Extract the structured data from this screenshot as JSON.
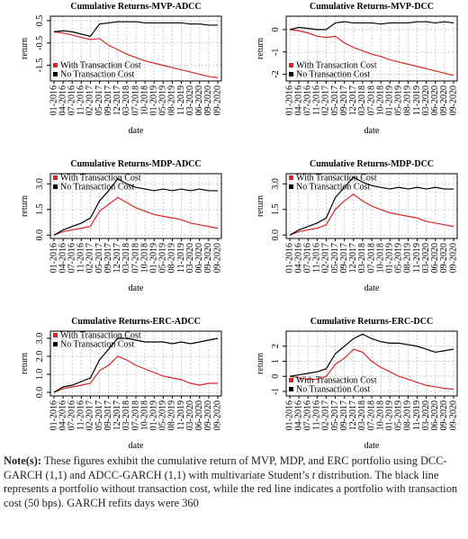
{
  "chart_data": [
    {
      "type": "line",
      "title": "Cumulative Returns-MVP-ADCC",
      "x_label": "date",
      "y_label": "return",
      "legend": "bottom-left",
      "grid": true,
      "categories": [
        "01-2016",
        "04-2016",
        "07-2016",
        "11-2016",
        "02-2017",
        "05-2017",
        "09-2017",
        "12-2017",
        "03-2018",
        "07-2018",
        "10-2018",
        "01-2019",
        "05-2019",
        "08-2019",
        "11-2019",
        "03-2020",
        "06-2020",
        "09-2020",
        "09-2020"
      ],
      "ylim": [
        -2.2,
        0.7
      ],
      "yticks": [
        -1.5,
        -0.5,
        0.5
      ],
      "series": [
        {
          "name": "With Transaction Cost",
          "color": "#d62728",
          "values": [
            0,
            -0.05,
            -0.15,
            -0.25,
            -0.35,
            -0.3,
            -0.6,
            -0.8,
            -1.0,
            -1.15,
            -1.3,
            -1.4,
            -1.5,
            -1.6,
            -1.7,
            -1.8,
            -1.9,
            -2.0,
            -2.05
          ]
        },
        {
          "name": "No Transaction Cost",
          "color": "#000000",
          "values": [
            0,
            0.05,
            0,
            -0.1,
            -0.2,
            0.35,
            0.4,
            0.45,
            0.45,
            0.45,
            0.4,
            0.4,
            0.4,
            0.4,
            0.4,
            0.35,
            0.35,
            0.3,
            0.3
          ]
        }
      ]
    },
    {
      "type": "line",
      "title": "Cumulative Returns-MVP-DCC",
      "x_label": "date",
      "y_label": "return",
      "legend": "bottom-left",
      "grid": true,
      "categories": [
        "01-2016",
        "04-2016",
        "07-2016",
        "11-2016",
        "02-2017",
        "05-2017",
        "09-2017",
        "12-2017",
        "03-2018",
        "07-2018",
        "10-2018",
        "01-2019",
        "05-2019",
        "08-2019",
        "11-2019",
        "03-2020",
        "06-2020",
        "09-2020",
        "09-2020"
      ],
      "ylim": [
        -2.3,
        0.6
      ],
      "yticks": [
        -2,
        -1,
        0
      ],
      "series": [
        {
          "name": "With Transaction Cost",
          "color": "#d62728",
          "values": [
            0,
            -0.05,
            -0.15,
            -0.3,
            -0.35,
            -0.3,
            -0.6,
            -0.8,
            -0.95,
            -1.1,
            -1.2,
            -1.35,
            -1.45,
            -1.55,
            -1.65,
            -1.75,
            -1.85,
            -1.95,
            -2.05
          ]
        },
        {
          "name": "No Transaction Cost",
          "color": "#000000",
          "values": [
            0,
            0.1,
            0.05,
            0,
            0,
            0.3,
            0.35,
            0.3,
            0.3,
            0.3,
            0.25,
            0.3,
            0.3,
            0.3,
            0.35,
            0.35,
            0.3,
            0.35,
            0.3
          ]
        }
      ]
    },
    {
      "type": "line",
      "title": "Cumulative Returns-MDP-ADCC",
      "x_label": "date",
      "y_label": "return",
      "legend": "top-left",
      "grid": true,
      "categories": [
        "01-2016",
        "04-2016",
        "07-2016",
        "11-2016",
        "02-2017",
        "05-2017",
        "09-2017",
        "12-2017",
        "03-2018",
        "07-2018",
        "10-2018",
        "01-2019",
        "05-2019",
        "08-2019",
        "11-2019",
        "03-2020",
        "06-2020",
        "09-2020",
        "09-2020"
      ],
      "ylim": [
        -0.2,
        3.6
      ],
      "yticks": [
        {
          "value": 0,
          "label": "0.0"
        },
        1.5,
        {
          "value": 3,
          "label": "3.0"
        }
      ],
      "series": [
        {
          "name": "With Transaction Cost",
          "color": "#d62728",
          "values": [
            0,
            0.2,
            0.3,
            0.4,
            0.5,
            1.4,
            1.8,
            2.2,
            1.9,
            1.6,
            1.4,
            1.2,
            1.1,
            1.0,
            0.9,
            0.7,
            0.6,
            0.5,
            0.4
          ]
        },
        {
          "name": "No Transaction Cost",
          "color": "#000000",
          "values": [
            0,
            0.3,
            0.5,
            0.7,
            1.0,
            2.0,
            2.6,
            3.3,
            3.0,
            2.8,
            2.7,
            2.6,
            2.7,
            2.6,
            2.7,
            2.6,
            2.7,
            2.6,
            2.6
          ]
        }
      ]
    },
    {
      "type": "line",
      "title": "Cumulative Returns-MDP-DCC",
      "x_label": "date",
      "y_label": "return",
      "legend": "top-left",
      "grid": true,
      "categories": [
        "01-2016",
        "04-2016",
        "07-2016",
        "11-2016",
        "02-2017",
        "05-2017",
        "09-2017",
        "12-2017",
        "03-2018",
        "07-2018",
        "10-2018",
        "01-2019",
        "05-2019",
        "08-2019",
        "11-2019",
        "03-2020",
        "06-2020",
        "09-2020",
        "09-2020"
      ],
      "ylim": [
        -0.2,
        3.6
      ],
      "yticks": [
        {
          "value": 0,
          "label": "0.0"
        },
        1.5,
        {
          "value": 3,
          "label": "3.0"
        }
      ],
      "series": [
        {
          "name": "With Transaction Cost",
          "color": "#d62728",
          "values": [
            0,
            0.2,
            0.3,
            0.4,
            0.6,
            1.5,
            2.0,
            2.4,
            2.0,
            1.7,
            1.5,
            1.3,
            1.2,
            1.1,
            1.0,
            0.8,
            0.7,
            0.6,
            0.5
          ]
        },
        {
          "name": "No Transaction Cost",
          "color": "#000000",
          "values": [
            0,
            0.3,
            0.5,
            0.7,
            1.0,
            2.2,
            2.8,
            3.4,
            3.1,
            2.9,
            2.8,
            2.7,
            2.8,
            2.7,
            2.8,
            2.7,
            2.8,
            2.7,
            2.7
          ]
        }
      ]
    },
    {
      "type": "line",
      "title": "Cumulative Returns-ERC-ADCC",
      "x_label": "date",
      "y_label": "return",
      "legend": "top-left",
      "grid": true,
      "categories": [
        "01-2016",
        "04-2016",
        "07-2016",
        "11-2016",
        "02-2017",
        "05-2017",
        "09-2017",
        "12-2017",
        "03-2018",
        "07-2018",
        "10-2018",
        "01-2019",
        "05-2019",
        "08-2019",
        "11-2019",
        "03-2020",
        "06-2020",
        "09-2020",
        "09-2020"
      ],
      "ylim": [
        -0.2,
        3.4
      ],
      "yticks": [
        {
          "value": 0,
          "label": "0.0"
        },
        {
          "value": 1,
          "label": "1.0"
        },
        {
          "value": 2,
          "label": "2.0"
        },
        {
          "value": 3,
          "label": "3.0"
        }
      ],
      "series": [
        {
          "name": "With Transaction Cost",
          "color": "#d62728",
          "values": [
            0,
            0.2,
            0.3,
            0.4,
            0.5,
            1.2,
            1.5,
            2.0,
            1.8,
            1.5,
            1.3,
            1.1,
            0.9,
            0.8,
            0.7,
            0.5,
            0.4,
            0.5,
            0.5
          ]
        },
        {
          "name": "No Transaction Cost",
          "color": "#000000",
          "values": [
            0,
            0.3,
            0.4,
            0.6,
            0.8,
            1.8,
            2.4,
            3.0,
            3.0,
            2.9,
            2.8,
            2.8,
            2.8,
            2.7,
            2.8,
            2.7,
            2.8,
            2.9,
            3.0
          ]
        }
      ]
    },
    {
      "type": "line",
      "title": "Cumulative Returns-ERC-DCC",
      "x_label": "date",
      "y_label": "return",
      "legend": "bottom-left",
      "grid": true,
      "categories": [
        "01-2016",
        "04-2016",
        "07-2016",
        "11-2016",
        "02-2017",
        "05-2017",
        "09-2017",
        "12-2017",
        "03-2018",
        "07-2018",
        "10-2018",
        "01-2019",
        "05-2019",
        "08-2019",
        "11-2019",
        "03-2020",
        "06-2020",
        "09-2020",
        "09-2020"
      ],
      "ylim": [
        -1.3,
        3.0
      ],
      "yticks": [
        -1,
        0,
        1,
        2
      ],
      "series": [
        {
          "name": "With Transaction Cost",
          "color": "#d62728",
          "values": [
            0,
            -0.1,
            -0.2,
            -0.2,
            0,
            0.8,
            1.2,
            1.8,
            1.6,
            1.0,
            0.6,
            0.3,
            0,
            -0.2,
            -0.4,
            -0.6,
            -0.7,
            -0.8,
            -0.85
          ]
        },
        {
          "name": "No Transaction Cost",
          "color": "#000000",
          "values": [
            0,
            0.1,
            0.2,
            0.3,
            0.5,
            1.5,
            2.0,
            2.5,
            2.8,
            2.5,
            2.3,
            2.2,
            2.2,
            2.1,
            2.0,
            1.8,
            1.6,
            1.7,
            1.8
          ]
        }
      ]
    }
  ],
  "note": {
    "label": "Note(s):",
    "text": "These figures exhibit the cumulative return of MVP, MDP, and ERC portfolio using DCC-GARCH (1,1) and ADCC-GARCH (1,1) with multivariate Student’s ",
    "italic": "t",
    "text_end": " distribution. The black line represents a portfolio without transaction cost, while the red line indicates a portfolio with transaction cost (50 bps). GARCH refits days were 360"
  }
}
